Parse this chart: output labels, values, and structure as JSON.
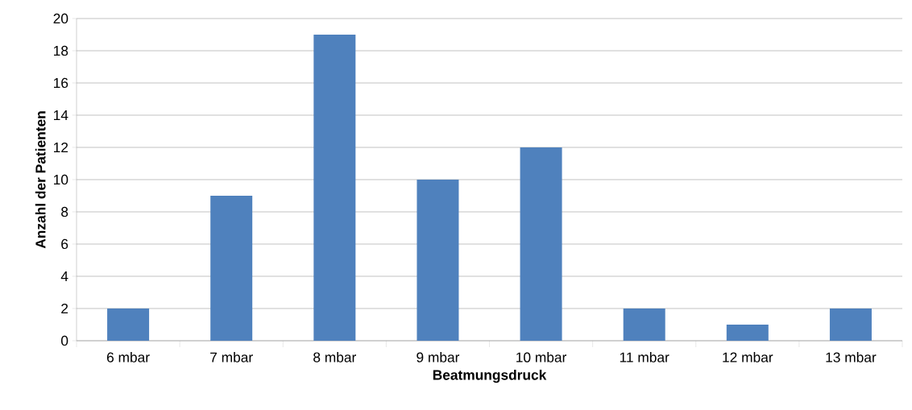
{
  "chart_data": {
    "type": "bar",
    "xlabel": "Beatmungsdruck",
    "ylabel": "Anzahl der Patienten",
    "categories": [
      "6 mbar",
      "7 mbar",
      "8 mbar",
      "9 mbar",
      "10 mbar",
      "11 mbar",
      "12 mbar",
      "13 mbar"
    ],
    "values": [
      2,
      9,
      19,
      10,
      12,
      2,
      1,
      2
    ],
    "color": "#4f81bd",
    "ylim": [
      0,
      20
    ],
    "yticks": [
      0,
      2,
      4,
      6,
      8,
      10,
      12,
      14,
      16,
      18,
      20
    ],
    "grid": "y"
  }
}
